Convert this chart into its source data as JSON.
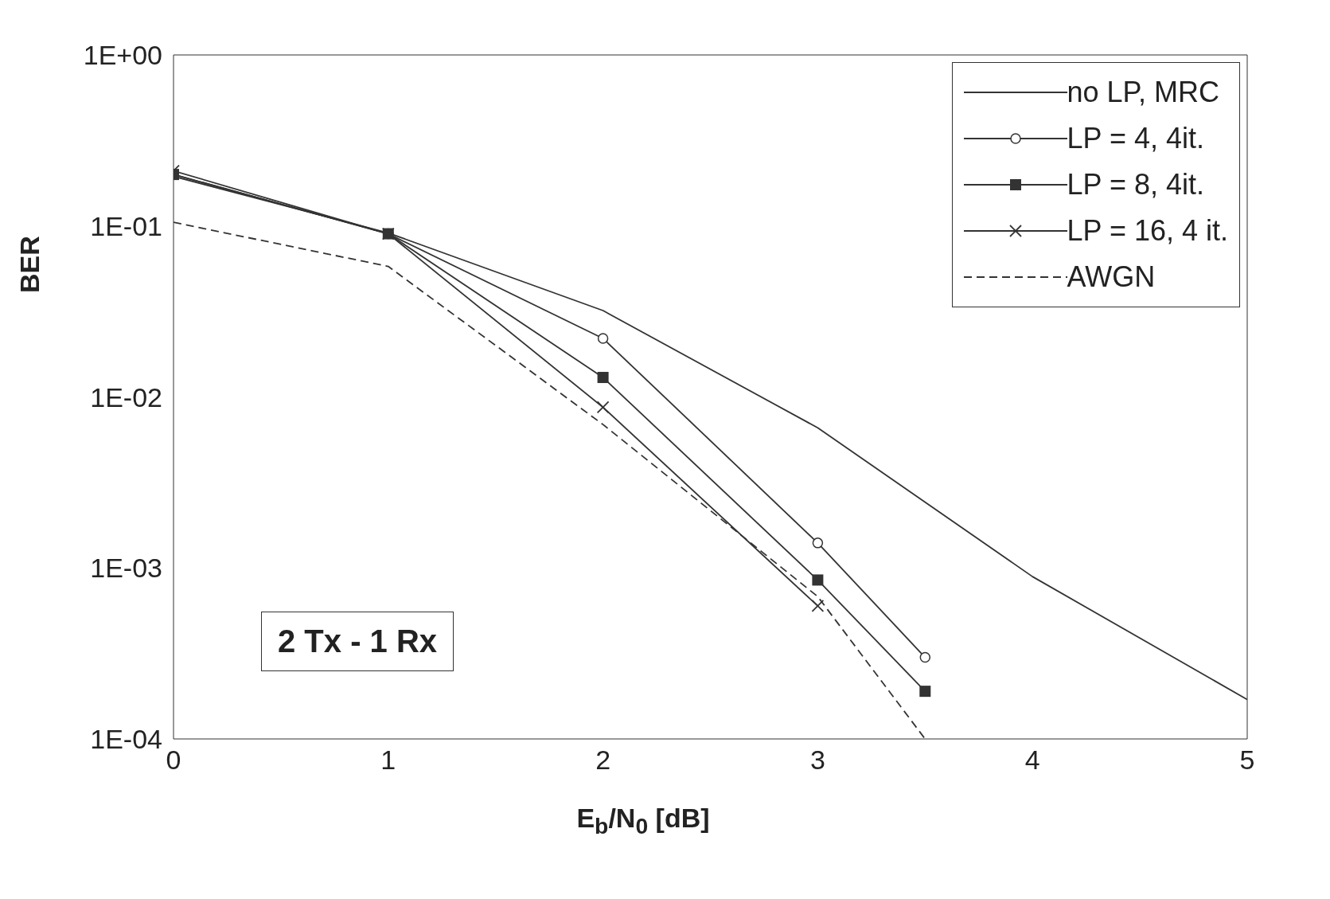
{
  "chart_data": {
    "type": "line",
    "xlabel": "E$_{b}$/N$_{0}$ [dB]",
    "ylabel": "BER",
    "xlim": [
      0,
      5
    ],
    "xticks": [
      0,
      1,
      2,
      3,
      4,
      5
    ],
    "ylim": [
      0.0001,
      1
    ],
    "yticks": [
      {
        "value": 1,
        "label": "1E+00"
      },
      {
        "value": 0.1,
        "label": "1E-01"
      },
      {
        "value": 0.01,
        "label": "1E-02"
      },
      {
        "value": 0.001,
        "label": "1E-03"
      },
      {
        "value": 0.0001,
        "label": "1E-04"
      }
    ],
    "log": "y",
    "grid": false,
    "legend": "top right",
    "annotations": [
      "2 Tx - 1 Rx"
    ],
    "series": [
      {
        "name": "no LP, MRC",
        "color": "#333333",
        "marker": "none",
        "line_style": "solid",
        "x": [
          0,
          1,
          2,
          3,
          4,
          5
        ],
        "values": [
          0.195,
          0.091,
          0.032,
          0.0066,
          0.00089,
          0.00017
        ]
      },
      {
        "name": "LP = 4, 4it.",
        "color": "#333333",
        "marker": "circle",
        "line_style": "solid",
        "x": [
          0,
          1,
          2,
          3,
          3.5
        ],
        "values": [
          0.2,
          0.09,
          0.022,
          0.0014,
          0.0003
        ]
      },
      {
        "name": "LP = 8, 4it.",
        "color": "#333333",
        "marker": "square",
        "line_style": "solid",
        "x": [
          0,
          1,
          2,
          3,
          3.5
        ],
        "values": [
          0.2,
          0.09,
          0.013,
          0.00085,
          0.00019
        ]
      },
      {
        "name": "LP = 16, 4 it.",
        "color": "#333333",
        "marker": "cross",
        "line_style": "solid",
        "x": [
          0,
          1,
          2,
          3
        ],
        "values": [
          0.21,
          0.09,
          0.0087,
          0.0006
        ]
      },
      {
        "name": "AWGN",
        "color": "#333333",
        "marker": "none",
        "line_style": "dashed",
        "x": [
          0,
          1,
          2,
          3,
          3.5
        ],
        "values": [
          0.105,
          0.058,
          0.0069,
          0.00068,
          0.0001
        ]
      }
    ]
  }
}
